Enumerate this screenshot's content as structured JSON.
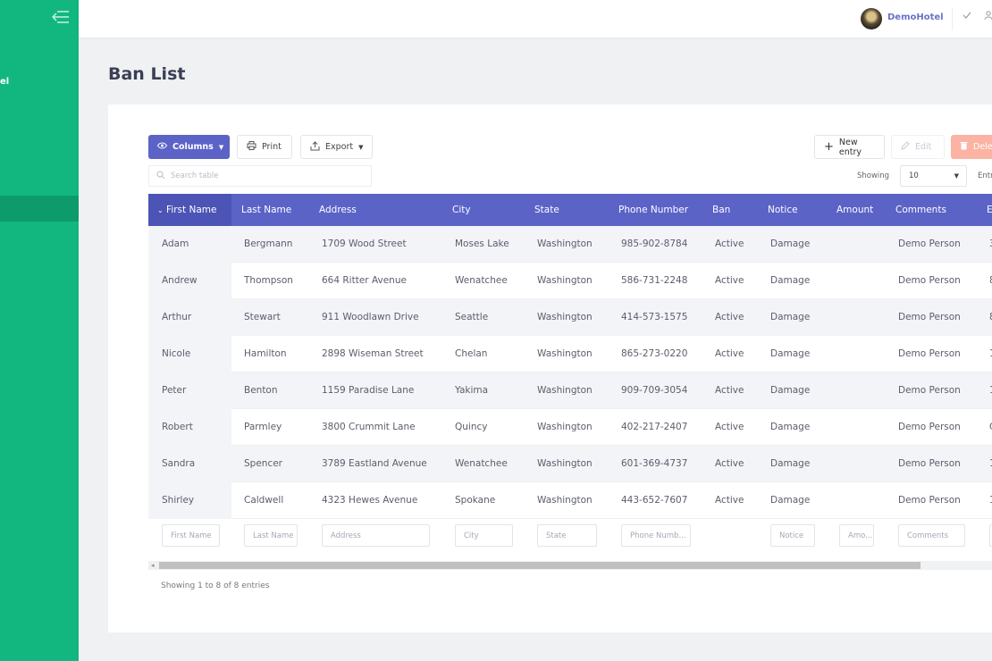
{
  "sidebar": {
    "collapse_icon": "menu-collapse-icon",
    "brand_fragment": "el",
    "accent": "#12b77f"
  },
  "topbar": {
    "hotel_name": "DemoHotel",
    "check_icon": "check-icon",
    "user_icon": "user-icon"
  },
  "page": {
    "title": "Ban List"
  },
  "toolbar": {
    "columns_label": "Columns",
    "print_label": "Print",
    "export_label": "Export",
    "new_entry_label": "New entry",
    "edit_label": "Edit",
    "delete_label": "Dele",
    "search_placeholder": "Search table",
    "showing_label": "Showing",
    "page_size": "10",
    "entries_label": "Entr"
  },
  "table": {
    "headers": [
      "First Name",
      "Last Name",
      "Address",
      "City",
      "State",
      "Phone Number",
      "Ban",
      "Notice",
      "Amount",
      "Comments",
      "E"
    ],
    "rows": [
      [
        "Adam",
        "Bergmann",
        "1709 Wood Street",
        "Moses Lake",
        "Washington",
        "985-902-8784",
        "Active",
        "Damage",
        "",
        "Demo Person",
        "3"
      ],
      [
        "Andrew",
        "Thompson",
        "664 Ritter Avenue",
        "Wenatchee",
        "Washington",
        "586-731-2248",
        "Active",
        "Damage",
        "",
        "Demo Person",
        "8"
      ],
      [
        "Arthur",
        "Stewart",
        "911 Woodlawn Drive",
        "Seattle",
        "Washington",
        "414-573-1575",
        "Active",
        "Damage",
        "",
        "Demo Person",
        "8"
      ],
      [
        "Nicole",
        "Hamilton",
        "2898 Wiseman Street",
        "Chelan",
        "Washington",
        "865-273-0220",
        "Active",
        "Damage",
        "",
        "Demo Person",
        "1"
      ],
      [
        "Peter",
        "Benton",
        "1159 Paradise Lane",
        "Yakima",
        "Washington",
        "909-709-3054",
        "Active",
        "Damage",
        "",
        "Demo Person",
        "1"
      ],
      [
        "Robert",
        "Parmley",
        "3800 Crummit Lane",
        "Quincy",
        "Washington",
        "402-217-2407",
        "Active",
        "Damage",
        "",
        "Demo Person",
        "C"
      ],
      [
        "Sandra",
        "Spencer",
        "3789 Eastland Avenue",
        "Wenatchee",
        "Washington",
        "601-369-4737",
        "Active",
        "Damage",
        "",
        "Demo Person",
        "1"
      ],
      [
        "Shirley",
        "Caldwell",
        "4323 Hewes Avenue",
        "Spokane",
        "Washington",
        "443-652-7607",
        "Active",
        "Damage",
        "",
        "Demo Person",
        "1"
      ]
    ],
    "filter_placeholders": [
      "First Name",
      "Last Name",
      "Address",
      "City",
      "State",
      "Phone Numb...",
      "Notice",
      "Amo...",
      "Comments"
    ],
    "footer": "Showing 1 to 8 of 8 entries",
    "header_color": "#5b63c7"
  }
}
